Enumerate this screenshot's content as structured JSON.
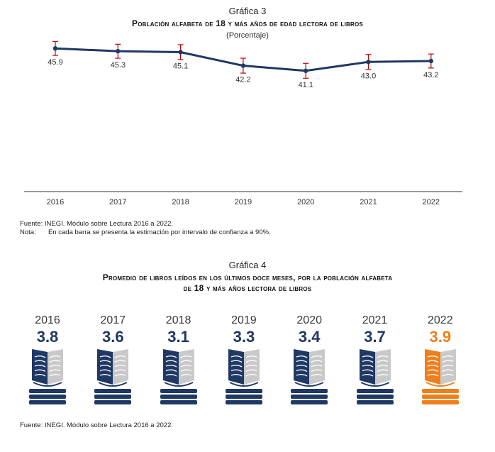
{
  "chart3": {
    "label": "Gráfica 3",
    "title": "Población alfabeta de 18 y más años de edad lectora de libros",
    "subtitle": "(Porcentaje)",
    "source": "Fuente: INEGI. Módulo sobre Lectura 2016 a 2022.",
    "note_label": "Nota:",
    "note_text": "En cada barra se presenta la estimación por intervalo de confianza a 90%."
  },
  "chart4": {
    "label": "Gráfica 4",
    "title_line1": "Promedio de libros leídos en los últimos doce meses, por la población alfabeta",
    "title_line2": "de 18 y más años lectora de libros",
    "source": "Fuente: INEGI. Módulo sobre Lectura 2016 a 2022."
  },
  "colors": {
    "navy": "#1f3864",
    "errorbar": "#c00000",
    "orange": "#f07f1b",
    "gray_page": "#c9c9c9",
    "axis": "#333333"
  },
  "chart_data": [
    {
      "type": "line",
      "title": "Población alfabeta de 18 y más años de edad lectora de libros",
      "subtitle": "(Porcentaje)",
      "categories": [
        "2016",
        "2017",
        "2018",
        "2019",
        "2020",
        "2021",
        "2022"
      ],
      "values": [
        45.9,
        45.3,
        45.1,
        42.2,
        41.1,
        43.0,
        43.2
      ],
      "value_labels": [
        "45.9",
        "45.3",
        "45.1",
        "42.2",
        "41.1",
        "43.0",
        "43.2"
      ],
      "error_margin": [
        1.5,
        1.5,
        1.6,
        1.6,
        1.6,
        1.6,
        1.5
      ],
      "ylim": [
        0,
        48
      ],
      "xlabel": "",
      "ylabel": "",
      "grid": false
    },
    {
      "type": "bar",
      "title": "Promedio de libros leídos en los últimos doce meses, por la población alfabeta de 18 y más años lectora de libros",
      "categories": [
        "2016",
        "2017",
        "2018",
        "2019",
        "2020",
        "2021",
        "2022"
      ],
      "values": [
        3.8,
        3.6,
        3.1,
        3.3,
        3.4,
        3.7,
        3.9
      ],
      "value_labels": [
        "3.8",
        "3.6",
        "3.1",
        "3.3",
        "3.4",
        "3.7",
        "3.9"
      ],
      "highlight": "2022",
      "mark": "book-icon"
    }
  ]
}
